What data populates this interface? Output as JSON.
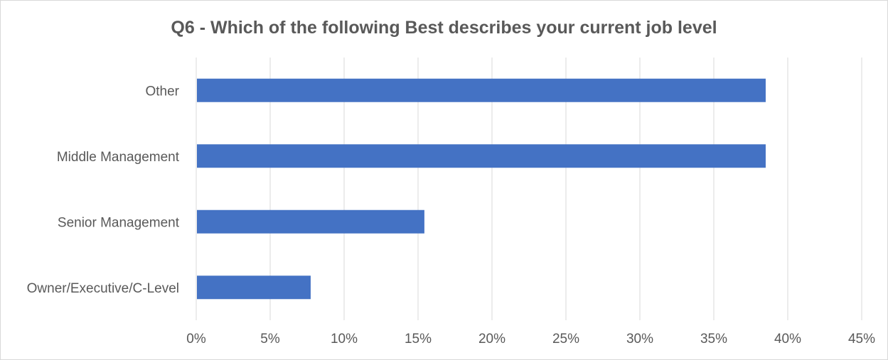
{
  "chart_data": {
    "type": "bar",
    "orientation": "horizontal",
    "title": "Q6 - Which of the following Best describes your current job level",
    "categories": [
      "Other",
      "Middle Management",
      "Senior Management",
      "Owner/Executive/C-Level"
    ],
    "values": [
      0.3846,
      0.3846,
      0.1538,
      0.0769
    ],
    "xlim": [
      0,
      0.45
    ],
    "x_ticks": [
      0,
      0.05,
      0.1,
      0.15,
      0.2,
      0.25,
      0.3,
      0.35,
      0.4,
      0.45
    ],
    "x_tick_labels": [
      "0%",
      "5%",
      "10%",
      "15%",
      "20%",
      "25%",
      "30%",
      "35%",
      "40%",
      "45%"
    ],
    "xlabel": "",
    "ylabel": "",
    "grid": "vertical",
    "legend": "none",
    "bar_color": "#4472C4",
    "gridline_color": "#d9d9d9"
  }
}
